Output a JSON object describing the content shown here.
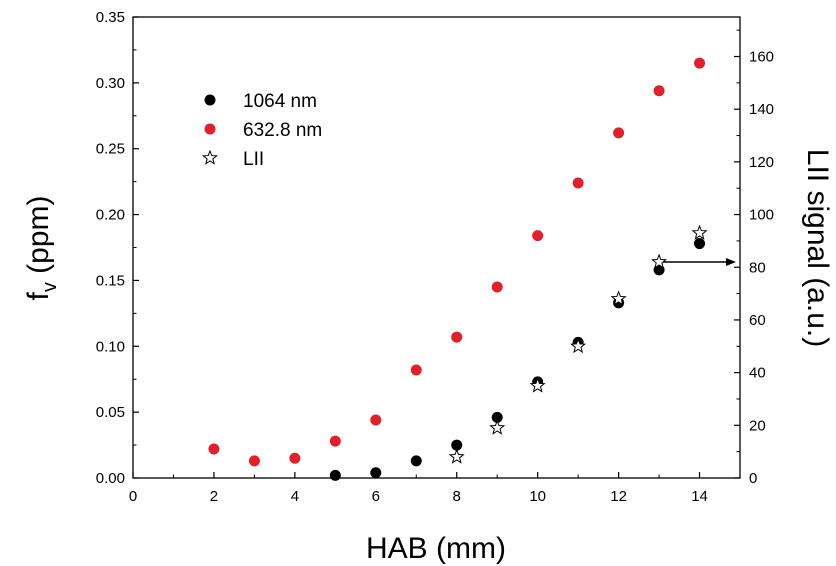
{
  "chart_data": {
    "type": "scatter",
    "xlabel": "HAB (mm)",
    "ylabel_main": "f",
    "ylabel_sub": "v",
    "ylabel_suffix": " (ppm)",
    "y2label": "LII signal (a.u.)",
    "xlim": [
      0,
      15
    ],
    "ylim": [
      0,
      0.35
    ],
    "y2lim": [
      0,
      175
    ],
    "x_ticks": [
      0,
      2,
      4,
      6,
      8,
      10,
      12,
      14
    ],
    "x_tick_labels": [
      "0",
      "2",
      "4",
      "6",
      "8",
      "10",
      "12",
      "14"
    ],
    "y_ticks": [
      0,
      0.05,
      0.1,
      0.15,
      0.2,
      0.25,
      0.3,
      0.35
    ],
    "y_tick_labels": [
      "0.00",
      "0.05",
      "0.10",
      "0.15",
      "0.20",
      "0.25",
      "0.30",
      "0.35"
    ],
    "y2_ticks": [
      0,
      20,
      40,
      60,
      80,
      100,
      120,
      140,
      160
    ],
    "y2_tick_labels": [
      "0",
      "20",
      "40",
      "60",
      "80",
      "100",
      "120",
      "140",
      "160"
    ],
    "grid": false,
    "legend_position": "top-left",
    "series": [
      {
        "name": "1064 nm",
        "axis": "left",
        "marker": "circle",
        "color": "#000000",
        "x": [
          5,
          6,
          7,
          8,
          9,
          10,
          11,
          12,
          13,
          14
        ],
        "y": [
          0.002,
          0.004,
          0.013,
          0.025,
          0.046,
          0.073,
          0.103,
          0.133,
          0.158,
          0.178
        ]
      },
      {
        "name": "632.8 nm",
        "axis": "left",
        "marker": "circle",
        "color": "#e0202a",
        "x": [
          2,
          3,
          4,
          5,
          6,
          7,
          8,
          9,
          10,
          11,
          12,
          13,
          14
        ],
        "y": [
          0.022,
          0.013,
          0.015,
          0.028,
          0.044,
          0.082,
          0.107,
          0.145,
          0.184,
          0.224,
          0.262,
          0.294,
          0.315
        ]
      },
      {
        "name": "LII",
        "axis": "right",
        "marker": "star",
        "color": "#000000",
        "x": [
          8,
          9,
          10,
          11,
          12,
          13,
          14
        ],
        "y": [
          8,
          19,
          35,
          50,
          68,
          82,
          93
        ]
      }
    ],
    "annotations": [
      {
        "type": "arrow",
        "from": [
          13.1,
          0.164
        ],
        "to": [
          14.9,
          0.164
        ],
        "meaning": "LII series uses right axis"
      }
    ]
  }
}
